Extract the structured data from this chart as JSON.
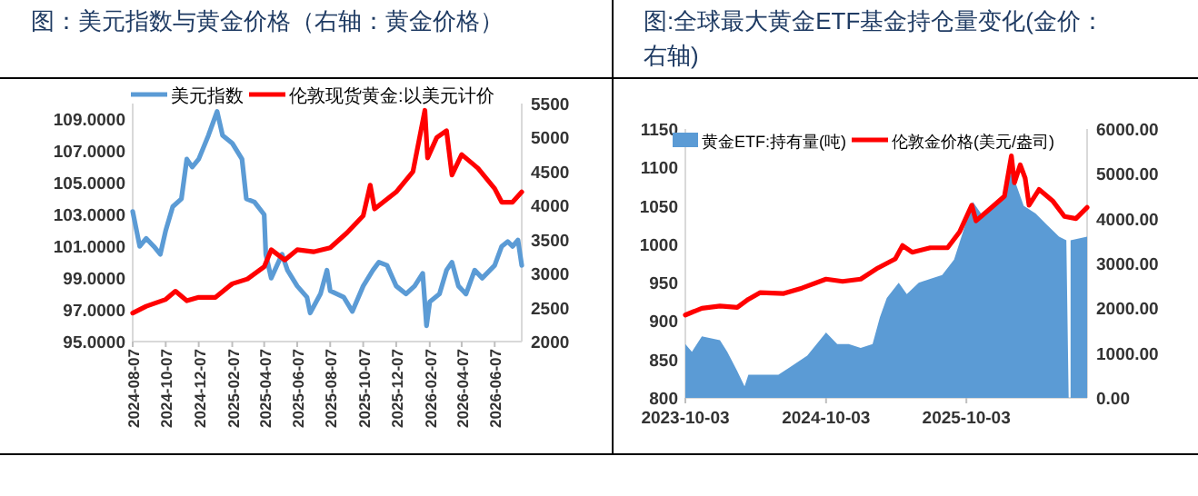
{
  "chart_data": [
    {
      "type": "line",
      "title": "图：美元指数与黄金价格（右轴：黄金价格）",
      "legend": "top",
      "grid": false,
      "marker": "none",
      "line_style": "solid",
      "xlim": [
        "2024-08-07",
        "2026-07-27"
      ],
      "xticks": [
        "2024-08-07",
        "2024-10-07",
        "2024-12-07",
        "2025-02-07",
        "2025-04-07",
        "2025-06-07",
        "2025-08-07",
        "2025-10-07",
        "2025-12-07",
        "2026-02-07",
        "2026-04-07",
        "2026-06-07"
      ],
      "ylim": [
        95,
        110
      ],
      "yticks": [
        {
          "value": 95,
          "label": "95.0000"
        },
        {
          "value": 97,
          "label": "97.0000"
        },
        {
          "value": 99,
          "label": "99.0000"
        },
        {
          "value": 101,
          "label": "101.0000"
        },
        {
          "value": 103,
          "label": "103.0000"
        },
        {
          "value": 105,
          "label": "105.0000"
        },
        {
          "value": 107,
          "label": "107.0000"
        },
        {
          "value": 109,
          "label": "109.0000"
        }
      ],
      "y2lim": [
        2000,
        5500
      ],
      "y2ticks": [
        2000,
        2500,
        3000,
        3500,
        4000,
        4500,
        5000,
        5500
      ],
      "series": [
        {
          "name": "美元指数",
          "color": "#5b9bd5",
          "axis": "y",
          "x": [
            "2024-08-07",
            "2024-08-20",
            "2024-09-01",
            "2024-09-15",
            "2024-09-27",
            "2024-10-07",
            "2024-10-20",
            "2024-11-05",
            "2024-11-15",
            "2024-11-25",
            "2024-12-07",
            "2024-12-25",
            "2025-01-10",
            "2025-01-20",
            "2025-02-07",
            "2025-02-25",
            "2025-03-05",
            "2025-03-20",
            "2025-04-07",
            "2025-04-10",
            "2025-04-20",
            "2025-05-10",
            "2025-05-20",
            "2025-06-07",
            "2025-06-25",
            "2025-07-01",
            "2025-07-20",
            "2025-08-01",
            "2025-08-07",
            "2025-09-01",
            "2025-09-17",
            "2025-10-07",
            "2025-10-25",
            "2025-11-05",
            "2025-11-20",
            "2025-12-07",
            "2025-12-25",
            "2026-01-10",
            "2026-01-25",
            "2026-02-01",
            "2026-02-07",
            "2026-02-25",
            "2026-03-10",
            "2026-03-20",
            "2026-04-01",
            "2026-04-15",
            "2026-05-01",
            "2026-05-15",
            "2026-06-07",
            "2026-06-20",
            "2026-07-01",
            "2026-07-10",
            "2026-07-20",
            "2026-07-27"
          ],
          "values": [
            103.2,
            101.0,
            101.5,
            101.0,
            100.5,
            102.0,
            103.5,
            104.0,
            106.5,
            106.0,
            106.5,
            108.0,
            109.5,
            108.0,
            107.5,
            106.5,
            104.0,
            103.8,
            103.0,
            100.5,
            99.0,
            100.5,
            99.5,
            98.5,
            97.8,
            96.8,
            98.0,
            99.5,
            98.2,
            97.8,
            96.9,
            98.5,
            99.5,
            100.0,
            99.8,
            98.5,
            98.0,
            98.5,
            99.3,
            96.0,
            97.5,
            98.0,
            99.5,
            100.0,
            98.5,
            98.0,
            99.5,
            99.0,
            99.8,
            101.0,
            101.3,
            101.0,
            101.4,
            99.8
          ]
        },
        {
          "name": "伦敦现货黄金:以美元计价",
          "color": "#ff0000",
          "axis": "y2",
          "x": [
            "2024-08-07",
            "2024-09-01",
            "2024-10-07",
            "2024-10-25",
            "2024-11-15",
            "2024-12-07",
            "2025-01-07",
            "2025-02-07",
            "2025-03-07",
            "2025-04-07",
            "2025-04-20",
            "2025-05-15",
            "2025-06-07",
            "2025-07-07",
            "2025-08-07",
            "2025-09-07",
            "2025-10-07",
            "2025-10-20",
            "2025-10-28",
            "2025-12-07",
            "2026-01-07",
            "2026-01-29",
            "2026-02-03",
            "2026-02-20",
            "2026-03-10",
            "2026-03-20",
            "2026-04-07",
            "2026-05-07",
            "2026-06-07",
            "2026-06-20",
            "2026-07-10",
            "2026-07-27"
          ],
          "values": [
            2420,
            2520,
            2620,
            2740,
            2600,
            2650,
            2650,
            2850,
            2920,
            3100,
            3350,
            3200,
            3350,
            3320,
            3380,
            3600,
            3850,
            4300,
            3950,
            4200,
            4500,
            5400,
            4700,
            5000,
            5100,
            4450,
            4750,
            4550,
            4250,
            4050,
            4050,
            4200
          ]
        }
      ]
    },
    {
      "type": "line",
      "title": "图:全球最大黄金ETF基金持仓量变化(金价：右轴)",
      "legend": "top",
      "grid": false,
      "marker": "none",
      "line_style": "solid",
      "xlim": [
        "2023-10-03",
        "2026-08-13"
      ],
      "xticks": [
        "2023-10-03",
        "2024-10-03",
        "2025-10-03"
      ],
      "ylim": [
        800,
        1150
      ],
      "yticks": [
        800,
        850,
        900,
        950,
        1000,
        1050,
        1100,
        1150
      ],
      "y2lim": [
        0,
        6000
      ],
      "y2ticks": [
        {
          "value": 0,
          "label": "0.00"
        },
        {
          "value": 1000,
          "label": "1000.00"
        },
        {
          "value": 2000,
          "label": "2000.00"
        },
        {
          "value": 3000,
          "label": "3000.00"
        },
        {
          "value": 4000,
          "label": "4000.00"
        },
        {
          "value": 5000,
          "label": "5000.00"
        },
        {
          "value": 6000,
          "label": "6000.00"
        }
      ],
      "series": [
        {
          "name": "黄金ETF:持有量(吨)",
          "type": "area",
          "color": "#5b9bd5",
          "axis": "y",
          "x": [
            "2023-10-03",
            "2023-10-20",
            "2023-11-15",
            "2024-01-01",
            "2024-01-20",
            "2024-02-15",
            "2024-03-05",
            "2024-03-15",
            "2024-04-15",
            "2024-06-01",
            "2024-07-01",
            "2024-08-15",
            "2024-10-03",
            "2024-11-01",
            "2024-12-01",
            "2025-01-01",
            "2025-02-01",
            "2025-02-20",
            "2025-03-10",
            "2025-04-10",
            "2025-05-01",
            "2025-06-01",
            "2025-07-01",
            "2025-08-01",
            "2025-09-01",
            "2025-10-03",
            "2025-10-20",
            "2025-11-10",
            "2025-12-10",
            "2026-01-10",
            "2026-01-28",
            "2026-02-15",
            "2026-03-01",
            "2026-04-01",
            "2026-05-01",
            "2026-06-01",
            "2026-06-20",
            "2026-06-26",
            "2026-07-01",
            "2026-08-13"
          ],
          "values": [
            870,
            860,
            880,
            875,
            860,
            835,
            815,
            830,
            830,
            830,
            840,
            855,
            885,
            870,
            870,
            865,
            870,
            905,
            930,
            950,
            935,
            950,
            955,
            960,
            980,
            1030,
            1055,
            1040,
            1050,
            1065,
            1095,
            1070,
            1050,
            1040,
            1025,
            1010,
            1005,
            null,
            1005,
            1010
          ]
        },
        {
          "name": "伦敦金价格(美元/盎司)",
          "color": "#ff0000",
          "axis": "y2",
          "x": [
            "2023-10-03",
            "2023-11-15",
            "2024-01-01",
            "2024-02-15",
            "2024-03-15",
            "2024-04-15",
            "2024-06-15",
            "2024-08-01",
            "2024-10-03",
            "2024-11-15",
            "2025-01-01",
            "2025-02-15",
            "2025-04-01",
            "2025-04-20",
            "2025-05-15",
            "2025-07-01",
            "2025-08-15",
            "2025-09-15",
            "2025-10-17",
            "2025-10-28",
            "2025-12-01",
            "2026-01-10",
            "2026-01-28",
            "2026-02-05",
            "2026-02-20",
            "2026-03-05",
            "2026-03-15",
            "2026-04-10",
            "2026-05-15",
            "2026-06-15",
            "2026-07-15",
            "2026-08-13"
          ],
          "values": [
            1850,
            2000,
            2050,
            2020,
            2200,
            2350,
            2330,
            2450,
            2650,
            2600,
            2650,
            2900,
            3100,
            3400,
            3250,
            3350,
            3350,
            3700,
            4300,
            3950,
            4200,
            4500,
            5400,
            4800,
            5200,
            4900,
            4300,
            4650,
            4400,
            4050,
            4000,
            4250
          ]
        }
      ]
    }
  ]
}
